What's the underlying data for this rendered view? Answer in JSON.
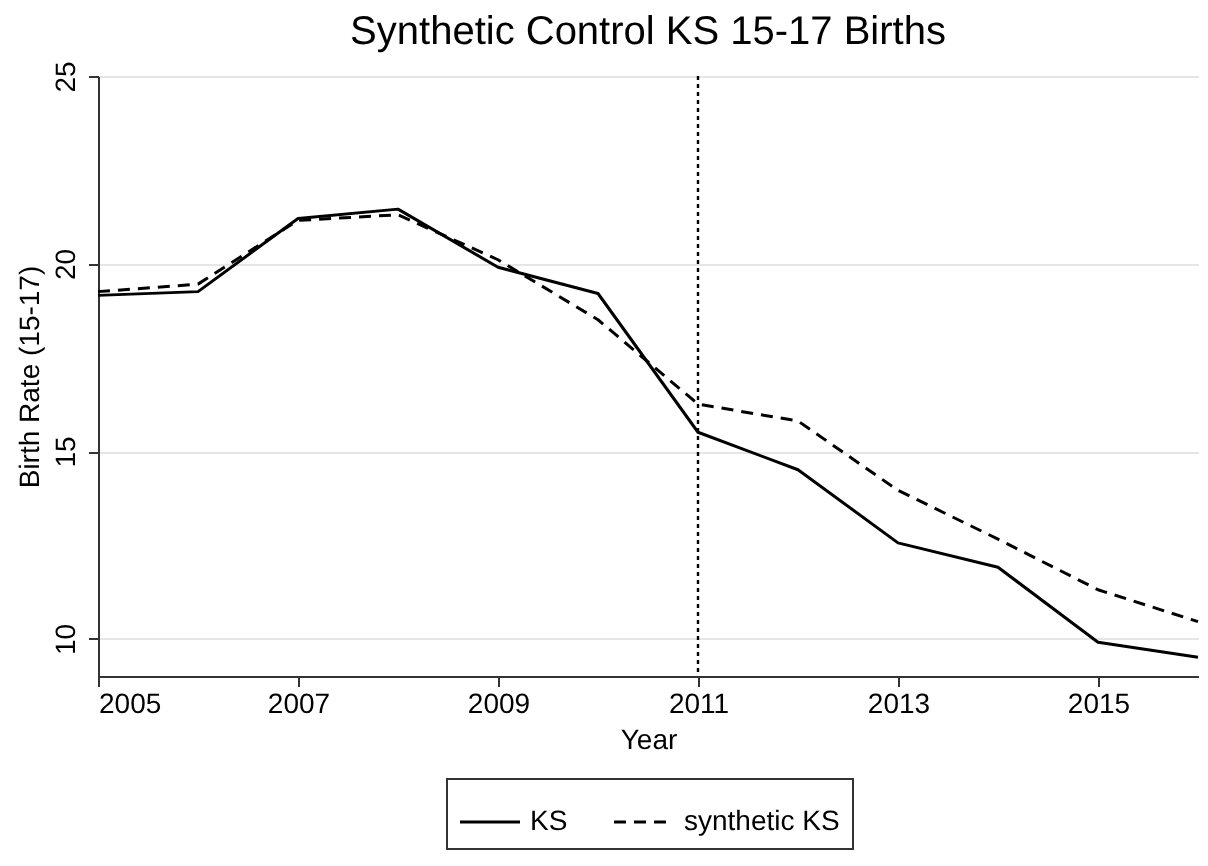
{
  "chart_data": {
    "type": "line",
    "title": "Synthetic Control KS 15-17 Births",
    "xlabel": "Year",
    "ylabel": "Birth Rate (15-17)",
    "x": [
      2005,
      2006,
      2007,
      2008,
      2009,
      2010,
      2011,
      2012,
      2013,
      2014,
      2015,
      2016
    ],
    "series": [
      {
        "name": "KS",
        "color": "#000000",
        "line_style": "solid",
        "values": [
          19.15,
          19.25,
          21.2,
          21.45,
          19.9,
          19.2,
          15.5,
          14.5,
          12.55,
          11.9,
          9.9,
          9.5
        ]
      },
      {
        "name": "synthetic KS",
        "color": "#000000",
        "line_style": "dashed",
        "values": [
          19.25,
          19.45,
          21.15,
          21.3,
          20.1,
          18.5,
          16.25,
          15.8,
          13.95,
          12.65,
          11.3,
          10.45
        ]
      }
    ],
    "xlim": [
      2005,
      2016
    ],
    "xticks": [
      2005,
      2007,
      2009,
      2011,
      2013,
      2015
    ],
    "ylim": [
      9,
      25
    ],
    "yticks": [
      10,
      15,
      20,
      25
    ],
    "grid": "y",
    "legend": "bottom",
    "marker": "none",
    "ref_lines": [
      {
        "axis": "x",
        "value": 2011,
        "color": "#000000",
        "line_style": "dotted"
      }
    ]
  }
}
